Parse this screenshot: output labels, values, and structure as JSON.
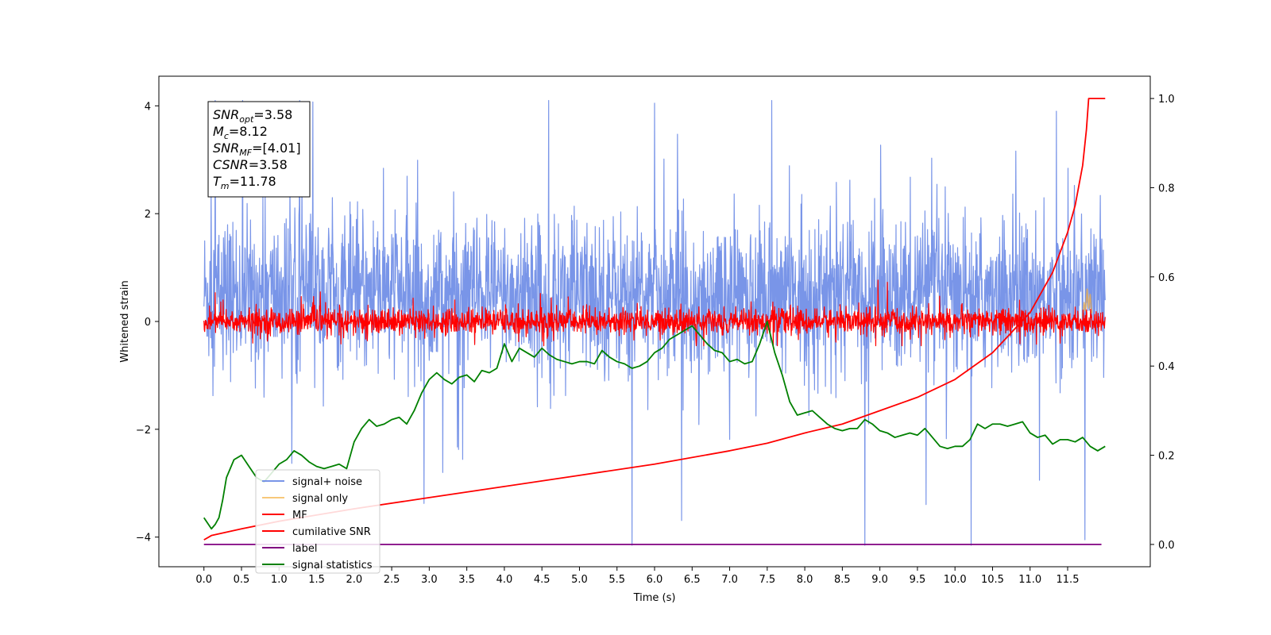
{
  "chart_data": {
    "type": "line",
    "title": "",
    "xlabel": "Time (s)",
    "ylabel": "Whitened strain",
    "ylabel_right": "",
    "xlim": [
      -0.6,
      12.6
    ],
    "ylim": [
      -4.55,
      4.55
    ],
    "ylim_right": [
      -0.05,
      1.05
    ],
    "grid": false,
    "legend_position": "lower-left",
    "x_ticks": [
      0.0,
      0.5,
      1.0,
      1.5,
      2.0,
      2.5,
      3.0,
      3.5,
      4.0,
      4.5,
      5.0,
      5.5,
      6.0,
      6.5,
      7.0,
      7.5,
      8.0,
      8.5,
      9.0,
      9.5,
      10.0,
      10.5,
      11.0,
      11.5
    ],
    "x_tick_labels": [
      "0.0",
      "0.5",
      "1.0",
      "1.5",
      "2.0",
      "2.5",
      "3.0",
      "3.5",
      "4.0",
      "4.5",
      "5.0",
      "5.5",
      "6.0",
      "6.5",
      "7.0",
      "7.5",
      "8.0",
      "8.5",
      "9.0",
      "9.5",
      "10.0",
      "10.5",
      "11.0",
      "11.5"
    ],
    "y_ticks": [
      -4,
      -2,
      0,
      2,
      4
    ],
    "y_tick_labels": [
      "−4",
      "−2",
      "0",
      "2",
      "4"
    ],
    "y_right_ticks": [
      0.0,
      0.2,
      0.4,
      0.6,
      0.8,
      1.0
    ],
    "y_right_tick_labels": [
      "0.0",
      "0.2",
      "0.4",
      "0.6",
      "0.8",
      "1.0"
    ],
    "annotation": {
      "lines": [
        {
          "base": "SNR",
          "sub": "opt",
          "value": "=3.58"
        },
        {
          "base": "M",
          "sub": "c",
          "value": "=8.12"
        },
        {
          "base": "SNR",
          "sub": "MF",
          "value": "=[4.01]"
        },
        {
          "base": "CSNR",
          "sub": "",
          "value": "=3.58"
        },
        {
          "base": "T",
          "sub": "m",
          "value": "=11.78"
        }
      ]
    },
    "series": [
      {
        "name": "signal+ noise",
        "axis": "left",
        "color": "#6a89e5",
        "opacity": 0.9,
        "kind": "noise",
        "x_range": [
          0.0,
          12.0
        ],
        "center": 0.5,
        "spread": 1.3,
        "min": -4.15,
        "max": 4.1,
        "spikes": [
          [
            5.7,
            -4.15
          ],
          [
            8.8,
            -4.15
          ],
          [
            11.73,
            -4.05
          ],
          [
            0.15,
            4.1
          ],
          [
            6.0,
            4.05
          ],
          [
            11.35,
            3.9
          ]
        ]
      },
      {
        "name": "signal only",
        "axis": "left",
        "color": "#f5b041",
        "opacity": 0.7,
        "kind": "burst",
        "x": [
          11.7,
          11.72,
          11.74,
          11.76,
          11.78,
          11.8,
          11.82
        ],
        "y": [
          0.1,
          0.35,
          0.2,
          0.6,
          0.25,
          0.5,
          0.15
        ]
      },
      {
        "name": "MF",
        "axis": "left",
        "color": "#ff0000",
        "opacity": 1,
        "kind": "noise",
        "x_range": [
          0.0,
          12.0
        ],
        "center": 0.0,
        "spread": 0.22,
        "min": -0.45,
        "max": 1.0
      },
      {
        "name": "cumilative SNR",
        "axis": "right",
        "color": "#ff0000",
        "opacity": 1,
        "kind": "line",
        "x": [
          0.0,
          0.1,
          0.5,
          1.0,
          2.0,
          3.0,
          4.0,
          5.0,
          6.0,
          7.0,
          7.5,
          8.0,
          8.5,
          9.0,
          9.5,
          10.0,
          10.5,
          11.0,
          11.3,
          11.5,
          11.6,
          11.7,
          11.75,
          11.78,
          11.8,
          11.9,
          12.0
        ],
        "y": [
          0.0103,
          0.02,
          0.035,
          0.052,
          0.08,
          0.105,
          0.13,
          0.155,
          0.18,
          0.21,
          0.227,
          0.25,
          0.27,
          0.3,
          0.33,
          0.37,
          0.43,
          0.52,
          0.61,
          0.7,
          0.76,
          0.85,
          0.93,
          1.0,
          1.0,
          1.0,
          1.0
        ]
      },
      {
        "name": "label",
        "axis": "right",
        "color": "#800080",
        "opacity": 1,
        "kind": "line",
        "x": [
          0.0,
          11.95
        ],
        "y": [
          0.0,
          0.0
        ]
      },
      {
        "name": "signal statistics",
        "axis": "right",
        "color": "#008000",
        "opacity": 1,
        "kind": "line",
        "x": [
          0.0,
          0.1,
          0.15,
          0.2,
          0.25,
          0.3,
          0.4,
          0.5,
          0.6,
          0.7,
          0.8,
          0.9,
          1.0,
          1.1,
          1.2,
          1.3,
          1.4,
          1.5,
          1.6,
          1.7,
          1.8,
          1.9,
          2.0,
          2.1,
          2.2,
          2.3,
          2.4,
          2.5,
          2.6,
          2.7,
          2.8,
          2.9,
          3.0,
          3.1,
          3.2,
          3.3,
          3.4,
          3.5,
          3.6,
          3.7,
          3.8,
          3.9,
          4.0,
          4.1,
          4.2,
          4.3,
          4.4,
          4.5,
          4.6,
          4.7,
          4.8,
          4.9,
          5.0,
          5.1,
          5.2,
          5.3,
          5.4,
          5.5,
          5.6,
          5.7,
          5.8,
          5.9,
          6.0,
          6.1,
          6.2,
          6.3,
          6.4,
          6.5,
          6.6,
          6.7,
          6.8,
          6.9,
          7.0,
          7.1,
          7.2,
          7.3,
          7.4,
          7.5,
          7.6,
          7.7,
          7.8,
          7.9,
          8.0,
          8.1,
          8.2,
          8.3,
          8.4,
          8.5,
          8.6,
          8.7,
          8.8,
          8.9,
          9.0,
          9.1,
          9.2,
          9.3,
          9.4,
          9.5,
          9.6,
          9.7,
          9.8,
          9.9,
          10.0,
          10.1,
          10.2,
          10.3,
          10.4,
          10.5,
          10.6,
          10.7,
          10.8,
          10.9,
          11.0,
          11.1,
          11.2,
          11.3,
          11.4,
          11.5,
          11.6,
          11.7,
          11.8,
          11.9,
          12.0
        ],
        "y": [
          0.06,
          0.035,
          0.045,
          0.06,
          0.1,
          0.15,
          0.19,
          0.2,
          0.175,
          0.15,
          0.14,
          0.16,
          0.18,
          0.19,
          0.21,
          0.2,
          0.185,
          0.175,
          0.17,
          0.175,
          0.18,
          0.17,
          0.23,
          0.26,
          0.28,
          0.265,
          0.27,
          0.28,
          0.285,
          0.27,
          0.3,
          0.34,
          0.37,
          0.385,
          0.37,
          0.36,
          0.375,
          0.38,
          0.365,
          0.39,
          0.385,
          0.395,
          0.45,
          0.41,
          0.44,
          0.43,
          0.42,
          0.44,
          0.425,
          0.415,
          0.41,
          0.405,
          0.41,
          0.41,
          0.405,
          0.435,
          0.42,
          0.41,
          0.405,
          0.395,
          0.4,
          0.41,
          0.43,
          0.44,
          0.46,
          0.47,
          0.48,
          0.49,
          0.47,
          0.45,
          0.435,
          0.43,
          0.41,
          0.415,
          0.405,
          0.41,
          0.45,
          0.5,
          0.43,
          0.38,
          0.32,
          0.29,
          0.295,
          0.3,
          0.285,
          0.27,
          0.26,
          0.255,
          0.26,
          0.26,
          0.28,
          0.27,
          0.255,
          0.25,
          0.24,
          0.245,
          0.25,
          0.245,
          0.26,
          0.24,
          0.22,
          0.215,
          0.22,
          0.22,
          0.235,
          0.27,
          0.26,
          0.27,
          0.27,
          0.265,
          0.27,
          0.275,
          0.25,
          0.24,
          0.245,
          0.225,
          0.235,
          0.235,
          0.23,
          0.24,
          0.22,
          0.21,
          0.22
        ]
      }
    ]
  }
}
